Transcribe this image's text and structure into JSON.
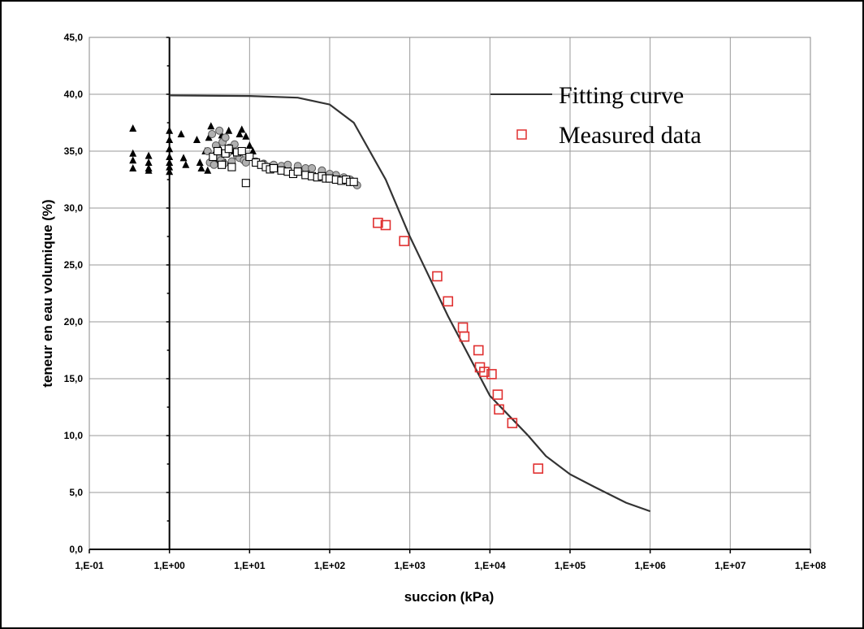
{
  "chart_data": {
    "type": "scatter",
    "title": "",
    "xlabel": "succion (kPa)",
    "ylabel": "teneur en eau volumique (%)",
    "xscale": "log",
    "xlim": [
      0.1,
      100000000
    ],
    "ylim": [
      0,
      45
    ],
    "grid": true,
    "legend_position": "top-right",
    "x_tick_labels": [
      "1,E-01",
      "1,E+00",
      "1,E+01",
      "1,E+02",
      "1,E+03",
      "1,E+04",
      "1,E+05",
      "1,E+06",
      "1,E+07",
      "1,E+08"
    ],
    "x_tick_values": [
      0.1,
      1,
      10,
      100,
      1000,
      10000,
      100000,
      1000000,
      10000000,
      100000000
    ],
    "y_tick_labels": [
      "0,0",
      "5,0",
      "10,0",
      "15,0",
      "20,0",
      "25,0",
      "30,0",
      "35,0",
      "40,0",
      "45,0"
    ],
    "y_tick_values": [
      0,
      5,
      10,
      15,
      20,
      25,
      30,
      35,
      40,
      45
    ],
    "series": [
      {
        "name": "Fitting curve",
        "kind": "line",
        "color": "#333333",
        "x": [
          1,
          10,
          40,
          100,
          200,
          500,
          1000,
          3000,
          10000,
          30000,
          50000,
          100000,
          200000,
          500000,
          1000000
        ],
        "y": [
          39.9,
          39.85,
          39.7,
          39.1,
          37.5,
          32.5,
          27.5,
          20.5,
          13.5,
          10.0,
          8.2,
          6.6,
          5.5,
          4.1,
          3.35
        ]
      },
      {
        "name": "Measured data",
        "kind": "marker",
        "marker": "square-open",
        "color": "#e03030",
        "x": [
          400,
          500,
          850,
          2200,
          3000,
          4600,
          4800,
          7200,
          7500,
          8500,
          10500,
          12500,
          13000,
          19000,
          40000
        ],
        "y": [
          28.7,
          28.5,
          27.1,
          24.0,
          21.8,
          19.5,
          18.7,
          17.5,
          16.0,
          15.6,
          15.4,
          13.6,
          12.3,
          11.1,
          7.1
        ]
      },
      {
        "kind": "marker",
        "marker": "triangle-filled",
        "color": "#000000",
        "x": [
          0.35,
          0.35,
          0.35,
          0.35,
          0.55,
          0.55,
          0.55,
          0.55,
          1,
          1,
          1,
          1,
          1,
          1,
          1,
          1.4,
          1.5,
          1.6,
          2.2,
          2.4,
          2.5,
          2.8,
          3.0,
          3.1,
          3.3,
          3.5,
          4.0,
          4.2,
          4.5,
          5.0,
          5.5,
          6.0,
          7.5,
          8.0,
          9.0,
          10,
          11
        ],
        "y": [
          37.0,
          34.8,
          34.2,
          33.5,
          34.6,
          34.0,
          33.5,
          33.3,
          36.8,
          36.0,
          35.2,
          34.5,
          34.0,
          33.6,
          33.2,
          36.5,
          34.4,
          33.8,
          36.0,
          34.0,
          33.5,
          35.0,
          33.3,
          36.2,
          37.2,
          34.6,
          34.2,
          35.3,
          36.4,
          34.0,
          36.8,
          35.0,
          36.5,
          36.9,
          36.3,
          35.5,
          35.0
        ]
      },
      {
        "kind": "marker",
        "marker": "circle-grey",
        "color": "#b0b0b0",
        "x": [
          3.0,
          3.2,
          3.4,
          3.6,
          3.8,
          4.0,
          4.2,
          4.4,
          4.6,
          4.8,
          5.0,
          5.3,
          5.6,
          6.0,
          6.5,
          7.0,
          7.5,
          8.0,
          8.5,
          9.0,
          12,
          15,
          20,
          25,
          30,
          40,
          50,
          60,
          80,
          100,
          120,
          150,
          180,
          220
        ],
        "y": [
          35.0,
          34.0,
          36.5,
          33.8,
          35.5,
          34.5,
          36.8,
          34.2,
          35.8,
          33.9,
          36.2,
          34.8,
          35.3,
          34.1,
          35.6,
          34.6,
          34.4,
          35.0,
          34.2,
          34.0,
          34.1,
          33.9,
          33.8,
          33.7,
          33.8,
          33.7,
          33.5,
          33.5,
          33.3,
          33.0,
          32.9,
          32.7,
          32.5,
          32.0
        ]
      },
      {
        "kind": "marker",
        "marker": "square-open",
        "color": "#000000",
        "x": [
          3.5,
          4.0,
          4.5,
          5.0,
          5.5,
          6.0,
          7.0,
          8.0,
          9.0,
          10,
          12,
          14,
          16,
          18,
          20,
          25,
          30,
          35,
          40,
          50,
          60,
          70,
          80,
          90,
          100,
          120,
          140,
          160,
          180,
          200
        ],
        "y": [
          34.5,
          35.0,
          33.8,
          34.8,
          35.2,
          33.6,
          34.9,
          35.0,
          32.2,
          34.5,
          34.0,
          33.8,
          33.6,
          33.4,
          33.5,
          33.3,
          33.2,
          33.0,
          33.2,
          32.9,
          32.8,
          32.7,
          32.8,
          32.6,
          32.6,
          32.5,
          32.4,
          32.5,
          32.3,
          32.3
        ]
      }
    ]
  }
}
